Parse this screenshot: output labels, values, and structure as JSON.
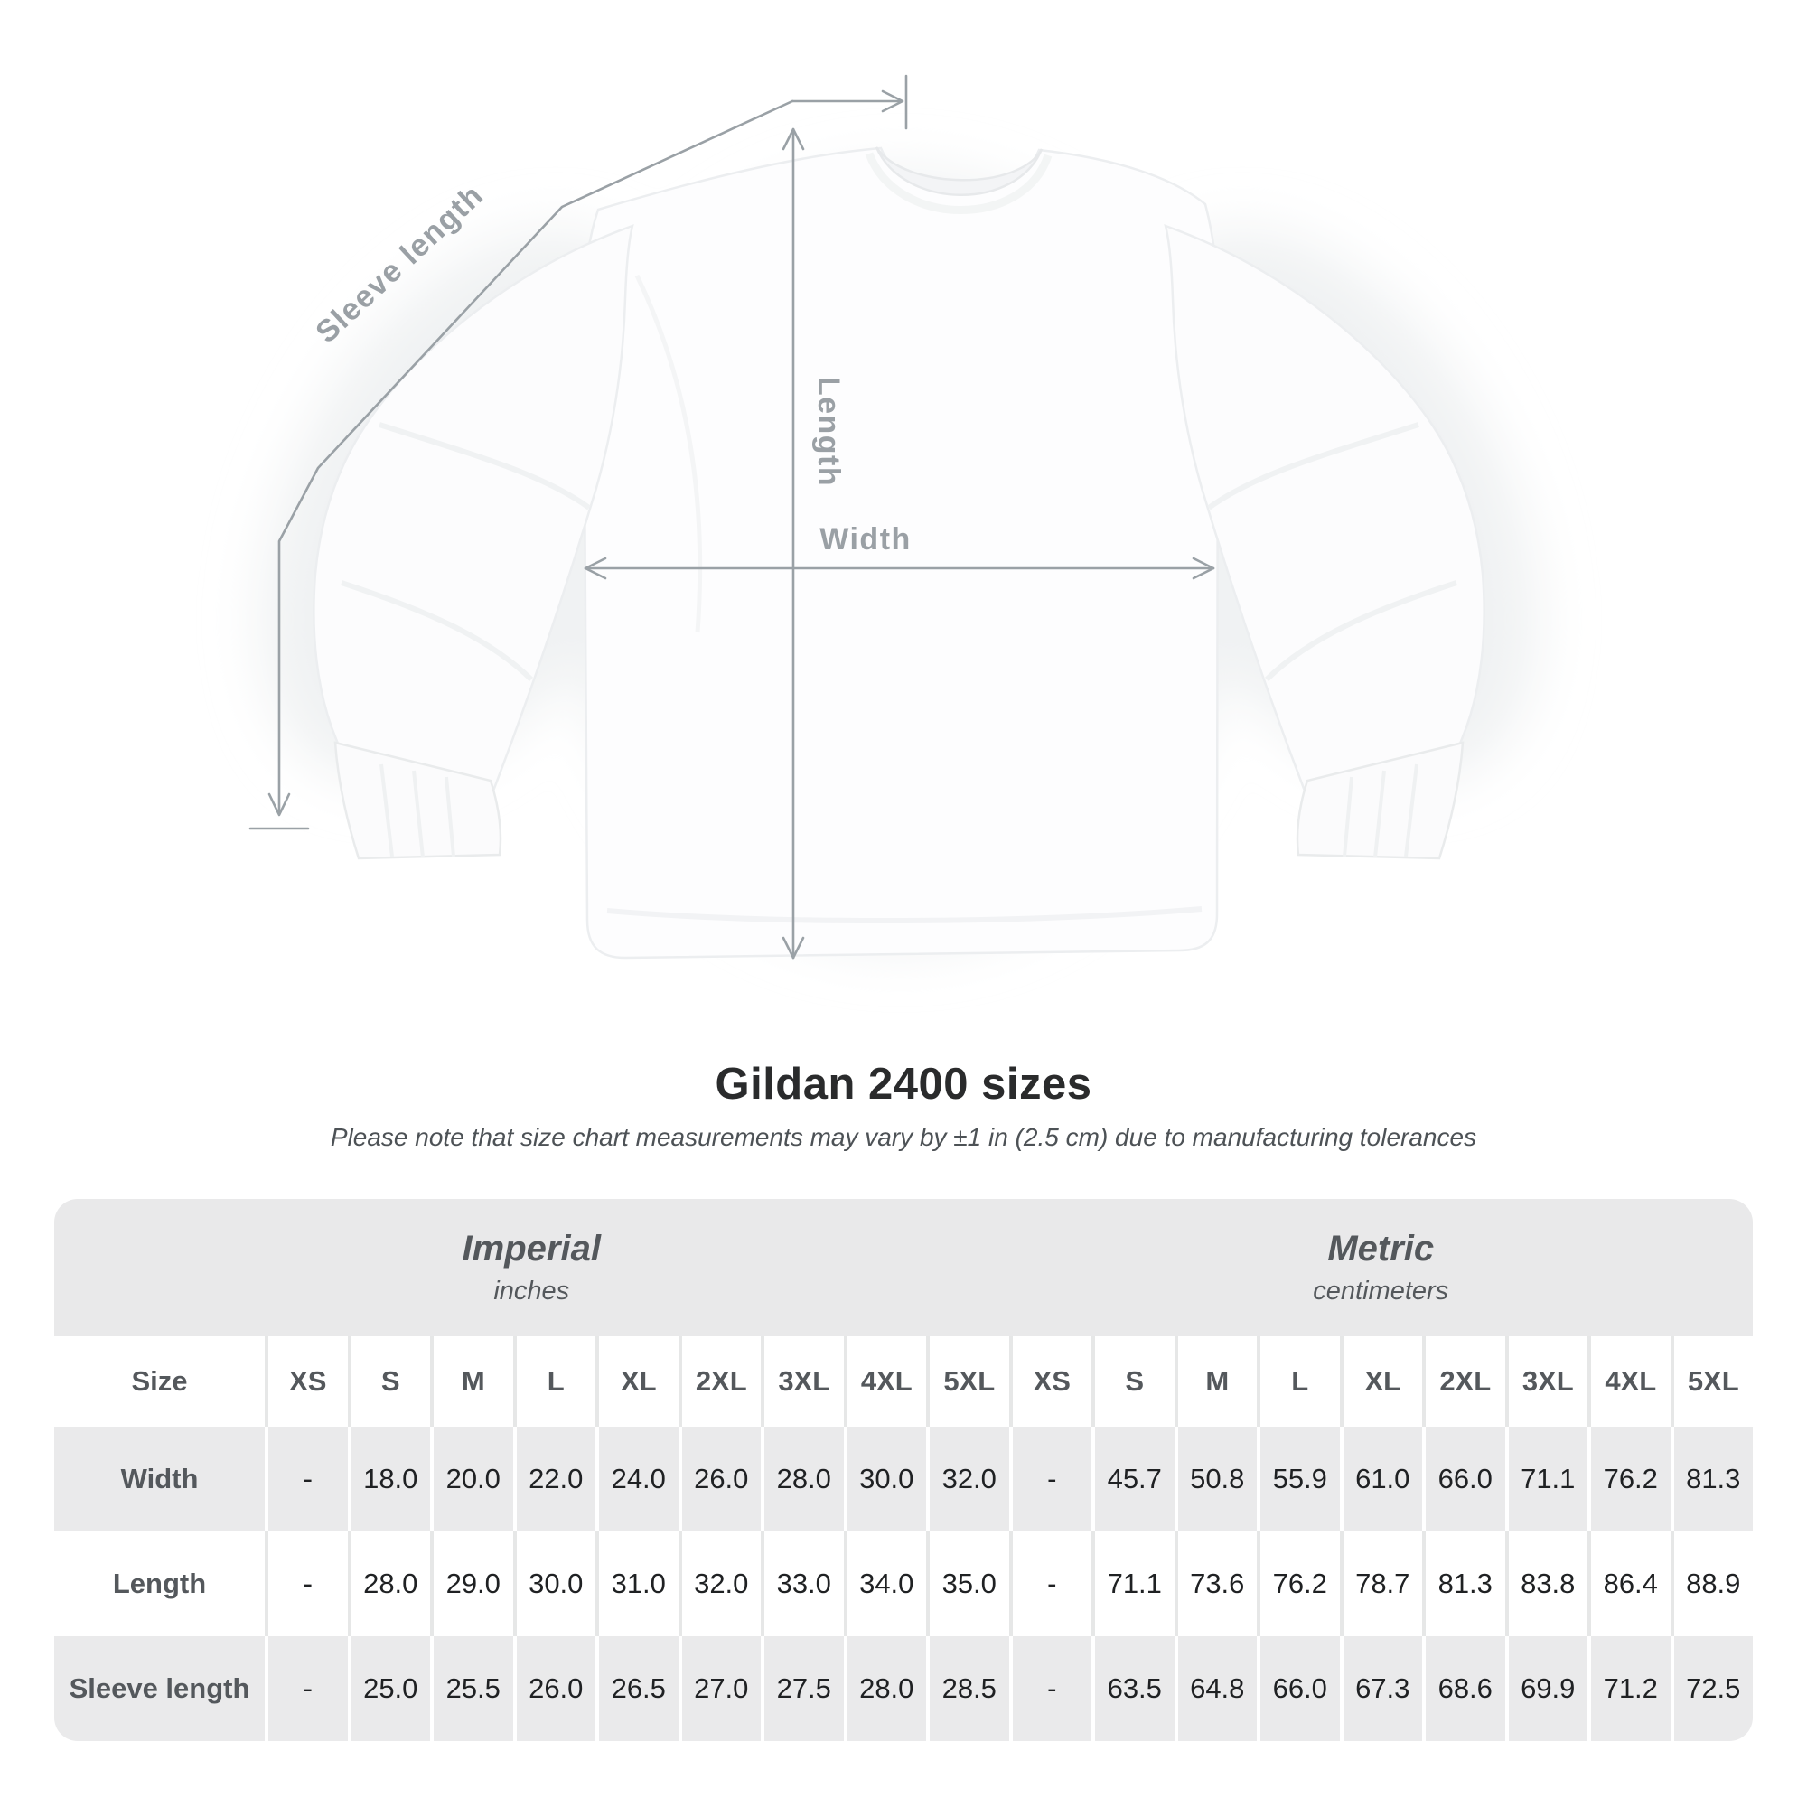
{
  "diagram": {
    "sleeve_length_label": "Sleeve length",
    "length_label": "Length",
    "width_label": "Width"
  },
  "header": {
    "title": "Gildan 2400 sizes",
    "subtitle": "Please note that size chart measurements may vary by ±1 in (2.5 cm) due to manufacturing tolerances"
  },
  "table": {
    "size_column_header": "Size",
    "unit_groups": [
      {
        "name": "Imperial",
        "unit": "inches"
      },
      {
        "name": "Metric",
        "unit": "centimeters"
      }
    ],
    "sizes": [
      "XS",
      "S",
      "M",
      "L",
      "XL",
      "2XL",
      "3XL",
      "4XL",
      "5XL"
    ],
    "rows": [
      {
        "label": "Width",
        "imperial": [
          "-",
          "18.0",
          "20.0",
          "22.0",
          "24.0",
          "26.0",
          "28.0",
          "30.0",
          "32.0"
        ],
        "metric": [
          "-",
          "45.7",
          "50.8",
          "55.9",
          "61.0",
          "66.0",
          "71.1",
          "76.2",
          "81.3"
        ]
      },
      {
        "label": "Length",
        "imperial": [
          "-",
          "28.0",
          "29.0",
          "30.0",
          "31.0",
          "32.0",
          "33.0",
          "34.0",
          "35.0"
        ],
        "metric": [
          "-",
          "71.1",
          "73.6",
          "76.2",
          "78.7",
          "81.3",
          "83.8",
          "86.4",
          "88.9"
        ]
      },
      {
        "label": "Sleeve length",
        "imperial": [
          "-",
          "25.0",
          "25.5",
          "26.0",
          "26.5",
          "27.0",
          "27.5",
          "28.0",
          "28.5"
        ],
        "metric": [
          "-",
          "63.5",
          "64.8",
          "66.0",
          "67.3",
          "68.6",
          "69.9",
          "71.2",
          "72.5"
        ]
      }
    ]
  },
  "colors": {
    "band_gray": "#e9e9ea",
    "row_gray": "#eaeaeb",
    "label_gray": "#54585c",
    "value_dark": "#1f2123",
    "annotation_gray": "#9aa1a6",
    "shirt_white": "#fdfdfe"
  },
  "chart_data": {
    "type": "table",
    "title": "Gildan 2400 sizes",
    "note": "Please note that size chart measurements may vary by ±1 in (2.5 cm) due to manufacturing tolerances",
    "unit_groups": [
      {
        "name": "Imperial",
        "unit": "inches"
      },
      {
        "name": "Metric",
        "unit": "centimeters"
      }
    ],
    "sizes": [
      "XS",
      "S",
      "M",
      "L",
      "XL",
      "2XL",
      "3XL",
      "4XL",
      "5XL"
    ],
    "rows": [
      {
        "measurement": "Width",
        "imperial_inches": [
          null,
          18.0,
          20.0,
          22.0,
          24.0,
          26.0,
          28.0,
          30.0,
          32.0
        ],
        "metric_cm": [
          null,
          45.7,
          50.8,
          55.9,
          61.0,
          66.0,
          71.1,
          76.2,
          81.3
        ]
      },
      {
        "measurement": "Length",
        "imperial_inches": [
          null,
          28.0,
          29.0,
          30.0,
          31.0,
          32.0,
          33.0,
          34.0,
          35.0
        ],
        "metric_cm": [
          null,
          71.1,
          73.6,
          76.2,
          78.7,
          81.3,
          83.8,
          86.4,
          88.9
        ]
      },
      {
        "measurement": "Sleeve length",
        "imperial_inches": [
          null,
          25.0,
          25.5,
          26.0,
          26.5,
          27.0,
          27.5,
          28.0,
          28.5
        ],
        "metric_cm": [
          null,
          63.5,
          64.8,
          66.0,
          67.3,
          68.6,
          69.9,
          71.2,
          72.5
        ]
      }
    ]
  }
}
